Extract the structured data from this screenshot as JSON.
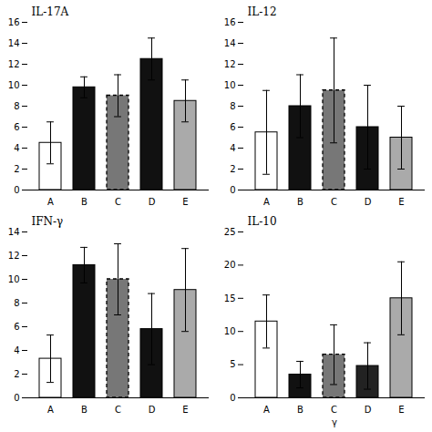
{
  "chart_data": [
    {
      "type": "bar",
      "title": "IL-17A",
      "categories": [
        "A",
        "B",
        "C",
        "D",
        "E"
      ],
      "values": [
        4.5,
        9.8,
        9.0,
        12.5,
        8.5
      ],
      "errors": [
        2.0,
        1.0,
        2.0,
        2.0,
        2.0
      ],
      "colors": [
        "#ffffff",
        "#111111",
        "#777777",
        "#111111",
        "#aaaaaa"
      ],
      "line_style": [
        "solid",
        "solid",
        "dashed",
        "solid",
        "solid"
      ],
      "ylim": [
        0,
        16
      ],
      "yticks": [
        0,
        2,
        4,
        6,
        8,
        10,
        12,
        14,
        16
      ],
      "grid": false
    },
    {
      "type": "bar",
      "title": "IL-12",
      "categories": [
        "A",
        "B",
        "C",
        "D",
        "E"
      ],
      "values": [
        5.5,
        8.0,
        9.5,
        6.0,
        5.0
      ],
      "errors": [
        4.0,
        3.0,
        5.0,
        4.0,
        3.0
      ],
      "colors": [
        "#ffffff",
        "#111111",
        "#777777",
        "#111111",
        "#aaaaaa"
      ],
      "line_style": [
        "solid",
        "solid",
        "dashed",
        "solid",
        "solid"
      ],
      "ylim": [
        0,
        16
      ],
      "yticks": [
        0,
        2,
        4,
        6,
        8,
        10,
        12,
        14,
        16
      ],
      "grid": false
    },
    {
      "type": "bar",
      "title": "IFN-γ",
      "categories": [
        "A",
        "B",
        "C",
        "D",
        "E"
      ],
      "values": [
        3.3,
        11.2,
        10.0,
        5.8,
        9.1
      ],
      "errors": [
        2.0,
        1.5,
        3.0,
        3.0,
        3.5
      ],
      "colors": [
        "#ffffff",
        "#111111",
        "#777777",
        "#111111",
        "#aaaaaa"
      ],
      "line_style": [
        "solid",
        "solid",
        "dashed",
        "solid",
        "solid"
      ],
      "ylim": [
        0,
        14
      ],
      "yticks": [
        0,
        2,
        4,
        6,
        8,
        10,
        12,
        14
      ],
      "grid": false
    },
    {
      "type": "bar",
      "title": "IL-10",
      "xlabel": "γ",
      "categories": [
        "A",
        "B",
        "C",
        "D",
        "E"
      ],
      "values": [
        11.5,
        3.5,
        6.5,
        4.8,
        15.0
      ],
      "errors": [
        4.0,
        2.0,
        4.5,
        3.5,
        5.5
      ],
      "colors": [
        "#ffffff",
        "#111111",
        "#777777",
        "#222222",
        "#aaaaaa"
      ],
      "line_style": [
        "solid",
        "solid",
        "dashed",
        "solid",
        "solid"
      ],
      "ylim": [
        0,
        25
      ],
      "yticks": [
        0,
        5,
        10,
        15,
        20,
        25
      ],
      "grid": false
    }
  ]
}
